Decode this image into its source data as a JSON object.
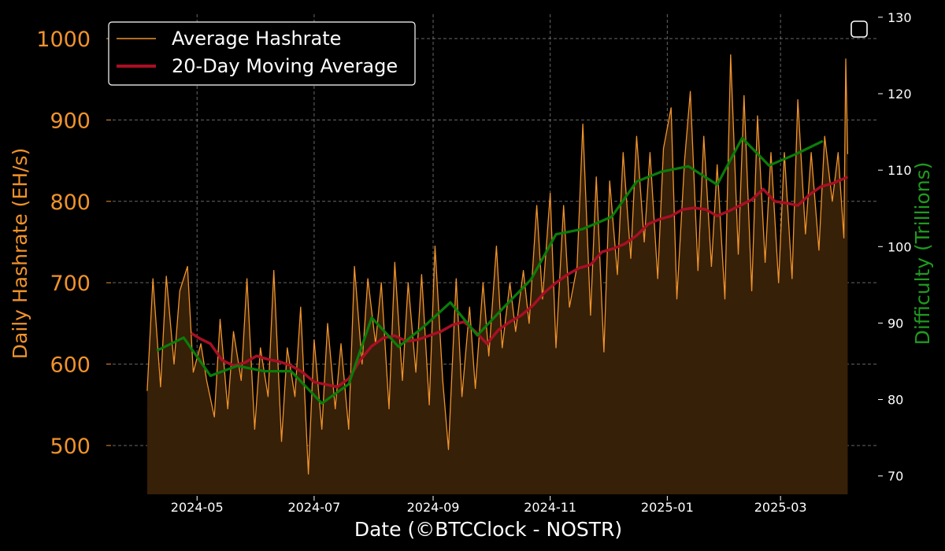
{
  "chart_data": {
    "type": "line",
    "xlabel": "Date (©BTCClock - NOSTR)",
    "ylabel_left": "Daily Hashrate (EH/s)",
    "ylabel_right": "Difficulty (Trillions)",
    "y_left_range": [
      440,
      1030
    ],
    "y_right_range": [
      67.6,
      130.4
    ],
    "x_range": [
      "2024-03-18",
      "2025-04-20"
    ],
    "x_ticks": [
      "2024-05",
      "2024-07",
      "2024-09",
      "2024-11",
      "2025-01",
      "2025-03"
    ],
    "y_left_ticks": [
      500,
      600,
      700,
      800,
      900,
      1000
    ],
    "y_right_ticks": [
      70,
      80,
      90,
      100,
      110,
      120,
      130
    ],
    "grid": true,
    "legend_position": "top-left",
    "colors": {
      "hashrate": "#f0932b",
      "fill": "#362008",
      "moving_average": "#a80f24",
      "difficulty": "#0a7d0a",
      "difficulty_label": "#1f9a1f",
      "grid": "#8a8a8a"
    },
    "series": [
      {
        "name": "Average Hashrate",
        "axis": "left",
        "points": [
          [
            "2024-04-05",
            567
          ],
          [
            "2024-04-08",
            705
          ],
          [
            "2024-04-12",
            572
          ],
          [
            "2024-04-15",
            708
          ],
          [
            "2024-04-19",
            600
          ],
          [
            "2024-04-22",
            690
          ],
          [
            "2024-04-26",
            720
          ],
          [
            "2024-04-29",
            590
          ],
          [
            "2024-05-03",
            625
          ],
          [
            "2024-05-06",
            580
          ],
          [
            "2024-05-10",
            535
          ],
          [
            "2024-05-13",
            655
          ],
          [
            "2024-05-17",
            545
          ],
          [
            "2024-05-20",
            640
          ],
          [
            "2024-05-24",
            580
          ],
          [
            "2024-05-27",
            705
          ],
          [
            "2024-05-31",
            520
          ],
          [
            "2024-06-03",
            620
          ],
          [
            "2024-06-07",
            560
          ],
          [
            "2024-06-10",
            715
          ],
          [
            "2024-06-14",
            505
          ],
          [
            "2024-06-17",
            620
          ],
          [
            "2024-06-21",
            560
          ],
          [
            "2024-06-24",
            670
          ],
          [
            "2024-06-28",
            465
          ],
          [
            "2024-07-01",
            630
          ],
          [
            "2024-07-05",
            520
          ],
          [
            "2024-07-08",
            650
          ],
          [
            "2024-07-12",
            545
          ],
          [
            "2024-07-15",
            625
          ],
          [
            "2024-07-19",
            520
          ],
          [
            "2024-07-22",
            720
          ],
          [
            "2024-07-26",
            600
          ],
          [
            "2024-07-29",
            705
          ],
          [
            "2024-08-02",
            625
          ],
          [
            "2024-08-05",
            700
          ],
          [
            "2024-08-09",
            545
          ],
          [
            "2024-08-12",
            725
          ],
          [
            "2024-08-16",
            580
          ],
          [
            "2024-08-19",
            700
          ],
          [
            "2024-08-23",
            590
          ],
          [
            "2024-08-26",
            710
          ],
          [
            "2024-08-30",
            550
          ],
          [
            "2024-09-02",
            745
          ],
          [
            "2024-09-06",
            580
          ],
          [
            "2024-09-09",
            495
          ],
          [
            "2024-09-13",
            705
          ],
          [
            "2024-09-16",
            560
          ],
          [
            "2024-09-20",
            670
          ],
          [
            "2024-09-23",
            570
          ],
          [
            "2024-09-27",
            700
          ],
          [
            "2024-09-30",
            610
          ],
          [
            "2024-10-04",
            745
          ],
          [
            "2024-10-07",
            620
          ],
          [
            "2024-10-11",
            700
          ],
          [
            "2024-10-14",
            640
          ],
          [
            "2024-10-18",
            715
          ],
          [
            "2024-10-21",
            650
          ],
          [
            "2024-10-25",
            795
          ],
          [
            "2024-10-28",
            680
          ],
          [
            "2024-11-01",
            810
          ],
          [
            "2024-11-04",
            620
          ],
          [
            "2024-11-08",
            795
          ],
          [
            "2024-11-11",
            670
          ],
          [
            "2024-11-15",
            720
          ],
          [
            "2024-11-18",
            895
          ],
          [
            "2024-11-22",
            660
          ],
          [
            "2024-11-25",
            830
          ],
          [
            "2024-11-29",
            615
          ],
          [
            "2024-12-02",
            825
          ],
          [
            "2024-12-06",
            710
          ],
          [
            "2024-12-09",
            860
          ],
          [
            "2024-12-13",
            730
          ],
          [
            "2024-12-16",
            880
          ],
          [
            "2024-12-20",
            750
          ],
          [
            "2024-12-23",
            860
          ],
          [
            "2024-12-27",
            705
          ],
          [
            "2024-12-30",
            865
          ],
          [
            "2025-01-03",
            915
          ],
          [
            "2025-01-06",
            680
          ],
          [
            "2025-01-10",
            850
          ],
          [
            "2025-01-13",
            935
          ],
          [
            "2025-01-17",
            715
          ],
          [
            "2025-01-20",
            880
          ],
          [
            "2025-01-24",
            720
          ],
          [
            "2025-01-27",
            845
          ],
          [
            "2025-01-31",
            680
          ],
          [
            "2025-02-03",
            980
          ],
          [
            "2025-02-07",
            735
          ],
          [
            "2025-02-10",
            930
          ],
          [
            "2025-02-14",
            690
          ],
          [
            "2025-02-17",
            905
          ],
          [
            "2025-02-21",
            725
          ],
          [
            "2025-02-24",
            860
          ],
          [
            "2025-02-28",
            700
          ],
          [
            "2025-03-03",
            860
          ],
          [
            "2025-03-07",
            705
          ],
          [
            "2025-03-10",
            925
          ],
          [
            "2025-03-14",
            760
          ],
          [
            "2025-03-17",
            860
          ],
          [
            "2025-03-21",
            740
          ],
          [
            "2025-03-24",
            880
          ],
          [
            "2025-03-28",
            800
          ],
          [
            "2025-03-31",
            860
          ],
          [
            "2025-04-03",
            755
          ],
          [
            "2025-04-04",
            975
          ],
          [
            "2025-04-05",
            858
          ]
        ]
      },
      {
        "name": "20-Day Moving Average",
        "axis": "left",
        "points": [
          [
            "2024-04-28",
            638
          ],
          [
            "2024-05-02",
            632
          ],
          [
            "2024-05-08",
            625
          ],
          [
            "2024-05-14",
            605
          ],
          [
            "2024-05-20",
            598
          ],
          [
            "2024-05-26",
            602
          ],
          [
            "2024-06-01",
            610
          ],
          [
            "2024-06-07",
            606
          ],
          [
            "2024-06-13",
            603
          ],
          [
            "2024-06-19",
            598
          ],
          [
            "2024-06-25",
            590
          ],
          [
            "2024-07-01",
            578
          ],
          [
            "2024-07-07",
            575
          ],
          [
            "2024-07-13",
            572
          ],
          [
            "2024-07-19",
            582
          ],
          [
            "2024-07-25",
            605
          ],
          [
            "2024-07-31",
            622
          ],
          [
            "2024-08-06",
            632
          ],
          [
            "2024-08-12",
            635
          ],
          [
            "2024-08-18",
            628
          ],
          [
            "2024-08-24",
            630
          ],
          [
            "2024-08-30",
            635
          ],
          [
            "2024-09-05",
            640
          ],
          [
            "2024-09-11",
            648
          ],
          [
            "2024-09-17",
            652
          ],
          [
            "2024-09-23",
            640
          ],
          [
            "2024-09-29",
            625
          ],
          [
            "2024-10-05",
            642
          ],
          [
            "2024-10-11",
            652
          ],
          [
            "2024-10-17",
            660
          ],
          [
            "2024-10-23",
            672
          ],
          [
            "2024-10-29",
            688
          ],
          [
            "2024-11-04",
            700
          ],
          [
            "2024-11-10",
            710
          ],
          [
            "2024-11-16",
            718
          ],
          [
            "2024-11-22",
            722
          ],
          [
            "2024-11-28",
            738
          ],
          [
            "2024-12-04",
            742
          ],
          [
            "2024-12-10",
            748
          ],
          [
            "2024-12-16",
            758
          ],
          [
            "2024-12-22",
            772
          ],
          [
            "2024-12-28",
            778
          ],
          [
            "2025-01-03",
            782
          ],
          [
            "2025-01-09",
            790
          ],
          [
            "2025-01-15",
            792
          ],
          [
            "2025-01-21",
            790
          ],
          [
            "2025-01-27",
            782
          ],
          [
            "2025-02-02",
            788
          ],
          [
            "2025-02-08",
            795
          ],
          [
            "2025-02-14",
            802
          ],
          [
            "2025-02-20",
            815
          ],
          [
            "2025-02-26",
            800
          ],
          [
            "2025-03-04",
            798
          ],
          [
            "2025-03-10",
            795
          ],
          [
            "2025-03-16",
            808
          ],
          [
            "2025-03-22",
            818
          ],
          [
            "2025-03-28",
            822
          ],
          [
            "2025-04-05",
            830
          ]
        ]
      },
      {
        "name": "Difficulty",
        "axis": "right",
        "points": [
          [
            "2024-04-10",
            86.4
          ],
          [
            "2024-04-24",
            88.1
          ],
          [
            "2024-05-08",
            83.1
          ],
          [
            "2024-05-22",
            84.4
          ],
          [
            "2024-06-05",
            83.7
          ],
          [
            "2024-06-19",
            83.7
          ],
          [
            "2024-07-05",
            79.5
          ],
          [
            "2024-07-19",
            82.0
          ],
          [
            "2024-07-31",
            90.7
          ],
          [
            "2024-08-14",
            86.9
          ],
          [
            "2024-08-27",
            89.5
          ],
          [
            "2024-09-10",
            92.7
          ],
          [
            "2024-09-24",
            88.4
          ],
          [
            "2024-10-08",
            92.1
          ],
          [
            "2024-10-22",
            95.7
          ],
          [
            "2024-11-04",
            101.6
          ],
          [
            "2024-11-18",
            102.3
          ],
          [
            "2024-12-03",
            103.9
          ],
          [
            "2024-12-16",
            108.5
          ],
          [
            "2024-12-29",
            109.8
          ],
          [
            "2025-01-12",
            110.5
          ],
          [
            "2025-01-27",
            108.1
          ],
          [
            "2025-02-09",
            114.2
          ],
          [
            "2025-02-23",
            110.6
          ],
          [
            "2025-03-09",
            112.1
          ],
          [
            "2025-03-23",
            113.8
          ]
        ]
      }
    ]
  },
  "legend": {
    "hashrate_label": "Average Hashrate",
    "ma_label": "20-Day Moving Average"
  }
}
